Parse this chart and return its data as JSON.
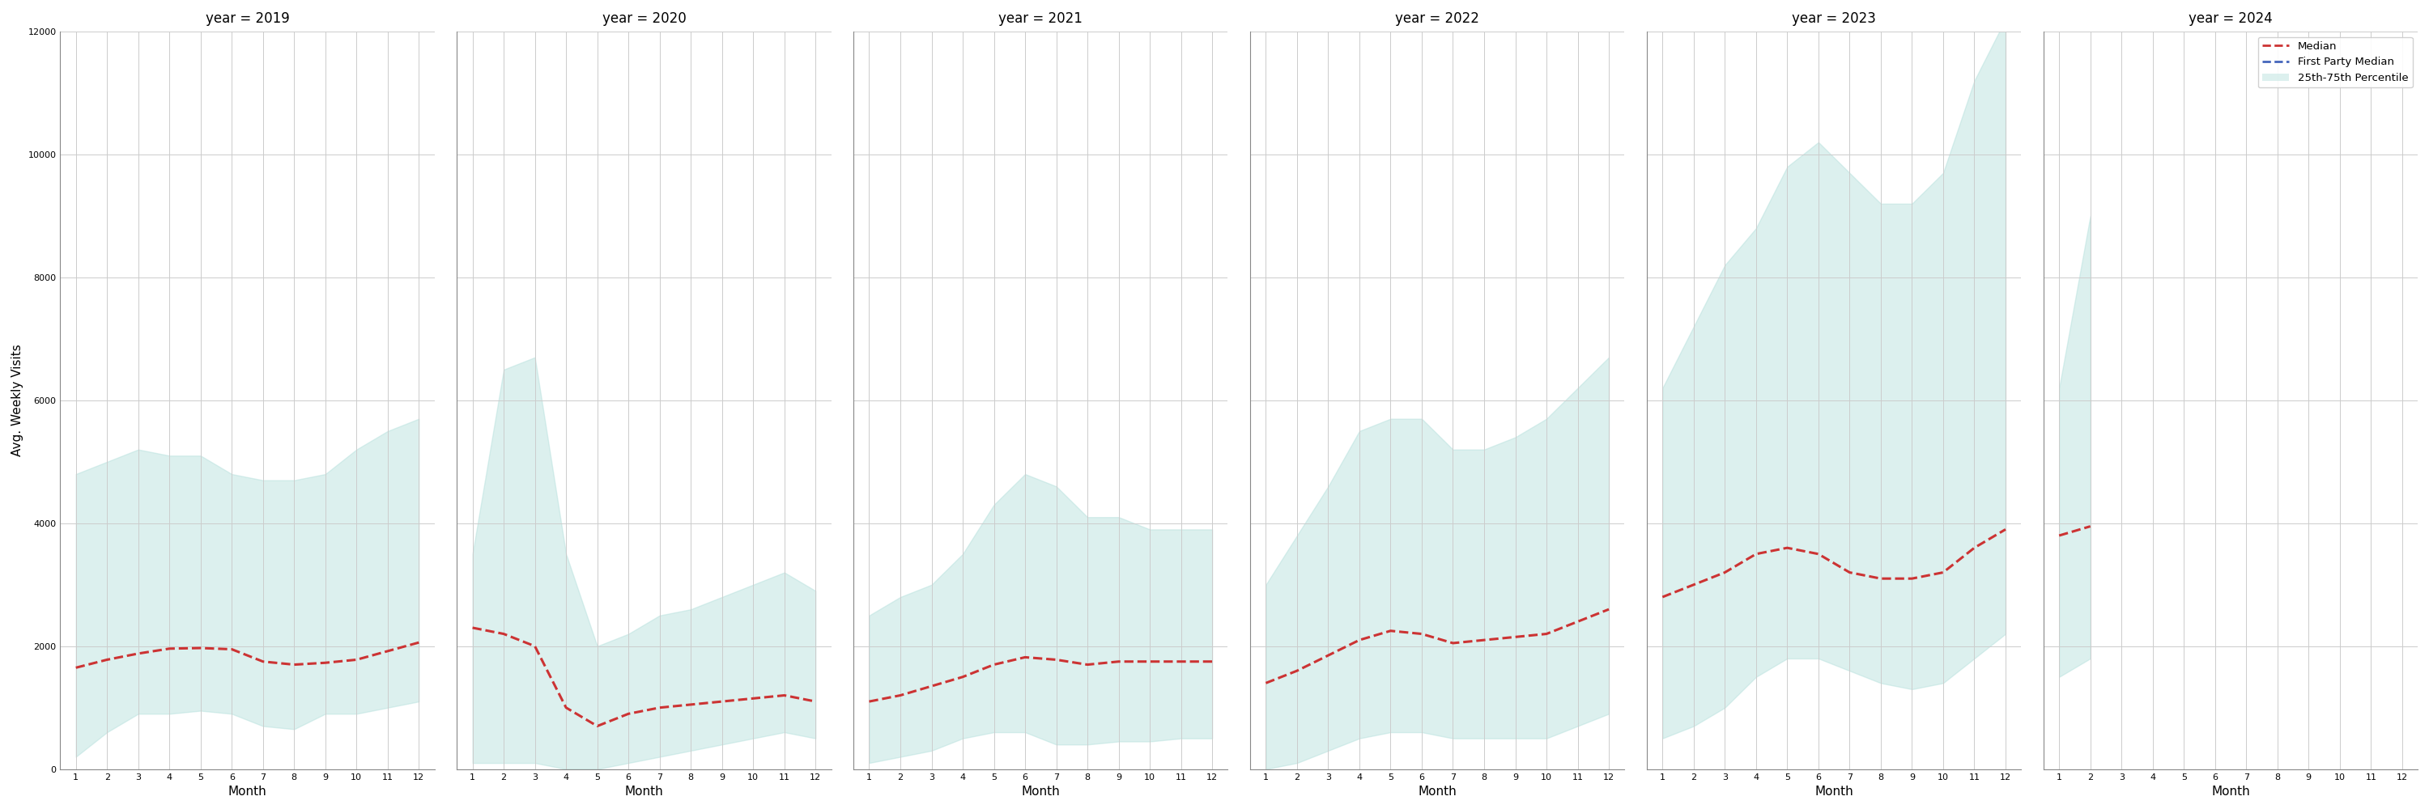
{
  "years": [
    2019,
    2020,
    2021,
    2022,
    2023,
    2024
  ],
  "months": [
    1,
    2,
    3,
    4,
    5,
    6,
    7,
    8,
    9,
    10,
    11,
    12
  ],
  "months_2024": [
    1,
    2
  ],
  "median": {
    "2019": [
      1650,
      1780,
      1880,
      1960,
      1970,
      1950,
      1750,
      1700,
      1730,
      1780,
      1920,
      2060
    ],
    "2020": [
      2300,
      2200,
      2000,
      1000,
      700,
      900,
      1000,
      1050,
      1100,
      1150,
      1200,
      1100
    ],
    "2021": [
      1100,
      1200,
      1350,
      1500,
      1700,
      1820,
      1780,
      1700,
      1750,
      1750,
      1750,
      1750
    ],
    "2022": [
      1400,
      1600,
      1850,
      2100,
      2250,
      2200,
      2050,
      2100,
      2150,
      2200,
      2400,
      2600
    ],
    "2023": [
      2800,
      3000,
      3200,
      3500,
      3600,
      3500,
      3200,
      3100,
      3100,
      3200,
      3600,
      3900
    ],
    "2024": [
      3800,
      3950
    ]
  },
  "q25": {
    "2019": [
      200,
      600,
      900,
      900,
      950,
      900,
      700,
      650,
      900,
      900,
      1000,
      1100
    ],
    "2020": [
      100,
      100,
      100,
      0,
      0,
      100,
      200,
      300,
      400,
      500,
      600,
      500
    ],
    "2021": [
      100,
      200,
      300,
      500,
      600,
      600,
      400,
      400,
      450,
      450,
      500,
      500
    ],
    "2022": [
      0,
      100,
      300,
      500,
      600,
      600,
      500,
      500,
      500,
      500,
      700,
      900
    ],
    "2023": [
      500,
      700,
      1000,
      1500,
      1800,
      1800,
      1600,
      1400,
      1300,
      1400,
      1800,
      2200
    ],
    "2024": [
      1500,
      1800
    ]
  },
  "q75": {
    "2019": [
      4800,
      5000,
      5200,
      5100,
      5100,
      4800,
      4700,
      4700,
      4800,
      5200,
      5500,
      5700
    ],
    "2020": [
      3500,
      6500,
      6700,
      3500,
      2000,
      2200,
      2500,
      2600,
      2800,
      3000,
      3200,
      2900
    ],
    "2021": [
      2500,
      2800,
      3000,
      3500,
      4300,
      4800,
      4600,
      4100,
      4100,
      3900,
      3900,
      3900
    ],
    "2022": [
      3000,
      3800,
      4600,
      5500,
      5700,
      5700,
      5200,
      5200,
      5400,
      5700,
      6200,
      6700
    ],
    "2023": [
      6200,
      7200,
      8200,
      8800,
      9800,
      10200,
      9700,
      9200,
      9200,
      9700,
      11200,
      12200
    ],
    "2024": [
      6200,
      9000
    ]
  },
  "fill_color": "#b2dfdb",
  "fill_alpha": 0.45,
  "median_color": "#cc3333",
  "fp_median_color": "#4466bb",
  "ylabel": "Avg. Weekly Visits",
  "xlabel": "Month",
  "ylim": [
    0,
    12000
  ],
  "yticks": [
    0,
    2000,
    4000,
    6000,
    8000,
    10000,
    12000
  ],
  "background_color": "#ffffff",
  "grid_color": "#cccccc"
}
